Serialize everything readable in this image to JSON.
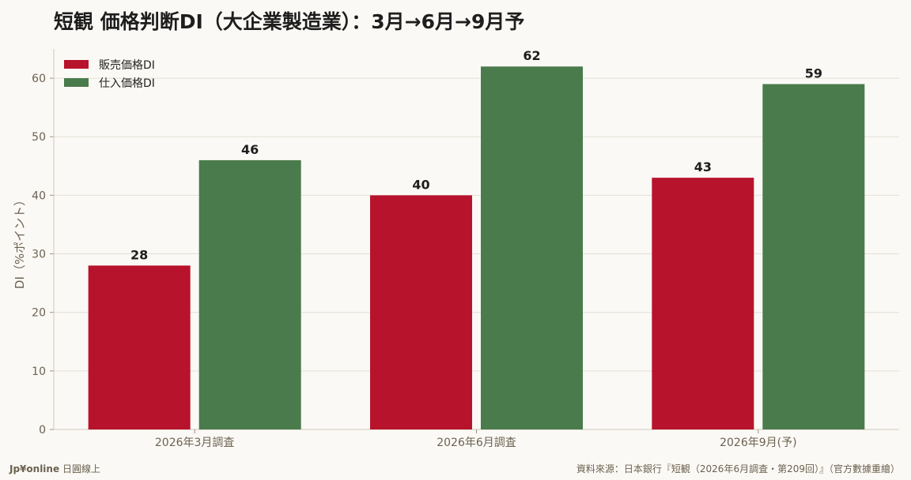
{
  "chart_data": {
    "type": "bar",
    "title": "短観 価格判断DI（大企業製造業）：3月→6月→9月予",
    "ylabel": "DI（%ポイント）",
    "xlabel": "",
    "categories": [
      "2026年3月調査",
      "2026年6月調査",
      "2026年9月(予)"
    ],
    "series": [
      {
        "name": "販売価格DI",
        "values": [
          28,
          40,
          43
        ],
        "color": "#b8132c"
      },
      {
        "name": "仕入価格DI",
        "values": [
          46,
          62,
          59
        ],
        "color": "#4a7b4c"
      }
    ],
    "ylim": [
      0,
      65
    ],
    "yticks": [
      0,
      10,
      20,
      30,
      40,
      50,
      60
    ],
    "grid": true,
    "legend": "top-left"
  },
  "footer": {
    "brand": "Jp¥online",
    "brand_sub": "日圓線上",
    "source": "資料來源：日本銀行『短観（2026年6月調査・第209回）』（官方數據重繪）"
  }
}
